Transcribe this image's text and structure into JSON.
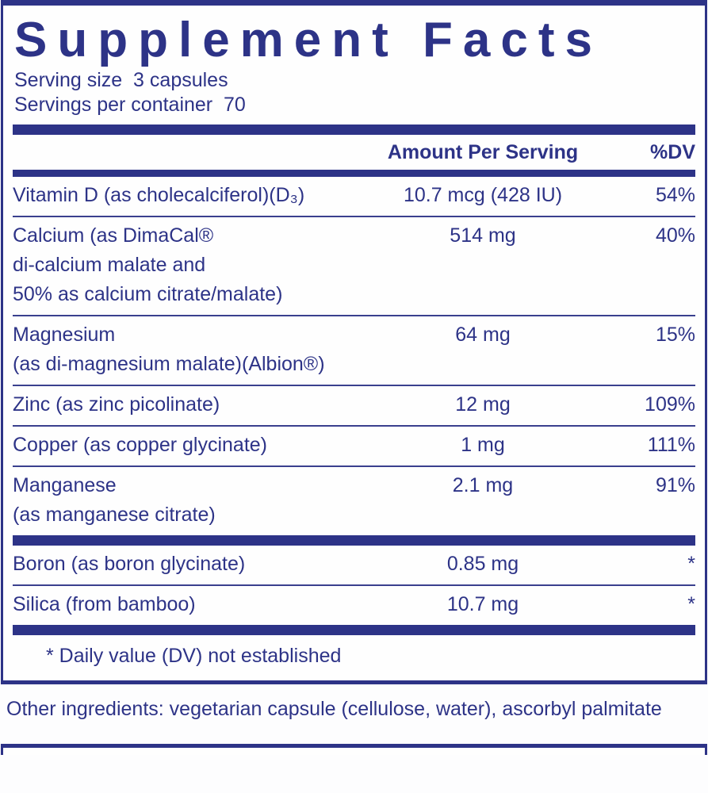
{
  "colors": {
    "navy": "#2d3387",
    "background": "#fdfdfe"
  },
  "label": {
    "title": "Supplement Facts",
    "serving_size_line": "Serving size  3 capsules",
    "servings_per_container_line": "Servings per container  70",
    "columns": {
      "amount_header": "Amount Per Serving",
      "dv_header": "%DV"
    },
    "rows": [
      {
        "name": "Vitamin D (as cholecalciferol)(D₃)",
        "amount": "10.7 mcg (428 IU)",
        "dv": "54%",
        "divider_after": "thin"
      },
      {
        "name": "Calcium (as DimaCal®\ndi-calcium malate and\n50% as calcium citrate/malate)",
        "amount": "514 mg",
        "dv": "40%",
        "divider_after": "thin"
      },
      {
        "name": "Magnesium\n(as di-magnesium malate)(Albion®)",
        "amount": "64 mg",
        "dv": "15%",
        "divider_after": "thin"
      },
      {
        "name": "Zinc (as zinc picolinate)",
        "amount": "12 mg",
        "dv": "109%",
        "divider_after": "thin"
      },
      {
        "name": "Copper (as copper glycinate)",
        "amount": "1 mg",
        "dv": "111%",
        "divider_after": "thin"
      },
      {
        "name": "Manganese\n(as manganese citrate)",
        "amount": "2.1 mg",
        "dv": "91%",
        "divider_after": "thick"
      },
      {
        "name": "Boron (as boron glycinate)",
        "amount": "0.85 mg",
        "dv": "*",
        "divider_after": "thin"
      },
      {
        "name": "Silica (from bamboo)",
        "amount": "10.7 mg",
        "dv": "*",
        "divider_after": "thick"
      }
    ],
    "footnote": "* Daily value (DV) not established"
  },
  "other_ingredients": "Other ingredients: vegetarian capsule (cellulose, water), ascorbyl palmitate"
}
